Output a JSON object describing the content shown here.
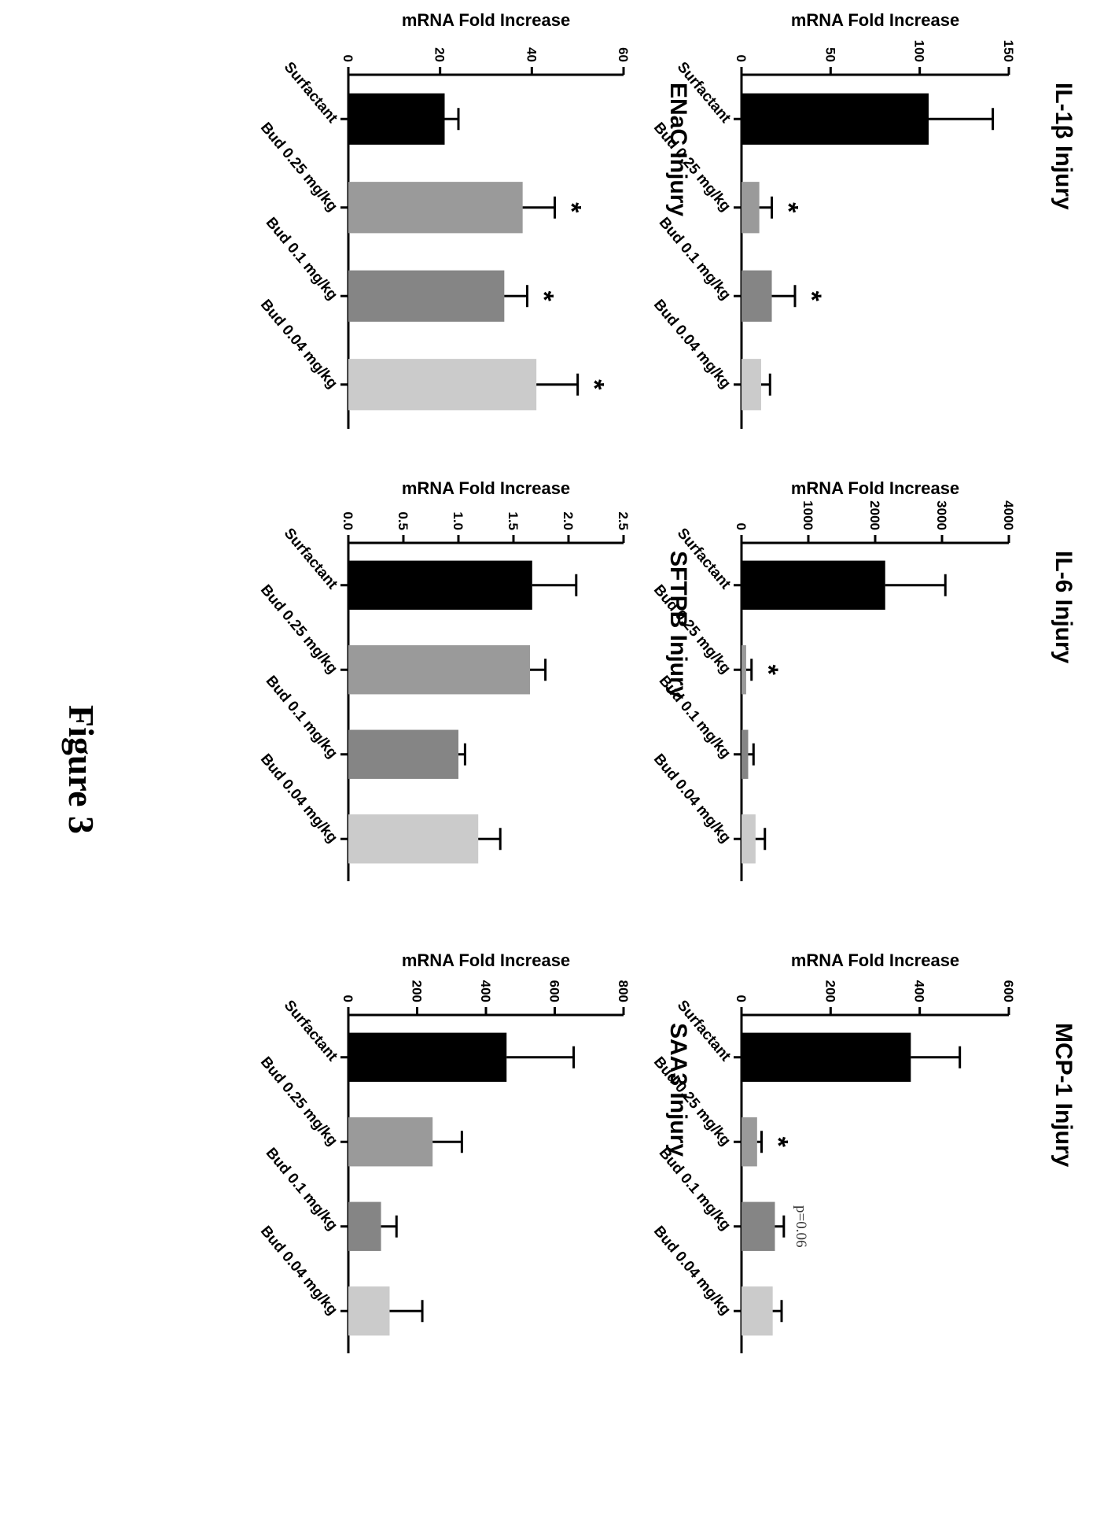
{
  "figure": {
    "caption": "Figure 3",
    "ylabel": "mRNA Fold Increase",
    "bar_colors": [
      "#000000",
      "#9a9a9a",
      "#858585",
      "#cbcbcb"
    ]
  },
  "chart_data": [
    {
      "type": "bar",
      "title": "IL-1β Injury",
      "categories": [
        "Surfactant",
        "Bud 0.25 mg/kg",
        "Bud 0.1 mg/kg",
        "Bud 0.04 mg/kg"
      ],
      "values": [
        105,
        10,
        17,
        11
      ],
      "errors": [
        36,
        7,
        13,
        5
      ],
      "ylim": [
        0,
        150
      ],
      "ticks": [
        0,
        50,
        100,
        150
      ],
      "annotations": [
        "",
        "*",
        "*",
        ""
      ]
    },
    {
      "type": "bar",
      "title": "IL-6 Injury",
      "categories": [
        "Surfactant",
        "Bud 0.25 mg/kg",
        "Bud 0.1 mg/kg",
        "Bud 0.04 mg/kg"
      ],
      "values": [
        2150,
        70,
        100,
        210
      ],
      "errors": [
        900,
        80,
        80,
        140
      ],
      "ylim": [
        0,
        4000
      ],
      "ticks": [
        0,
        1000,
        2000,
        3000,
        4000
      ],
      "annotations": [
        "",
        "*",
        "",
        ""
      ]
    },
    {
      "type": "bar",
      "title": "MCP-1 Injury",
      "categories": [
        "Surfactant",
        "Bud 0.25 mg/kg",
        "Bud 0.1 mg/kg",
        "Bud 0.04 mg/kg"
      ],
      "values": [
        380,
        35,
        75,
        70
      ],
      "errors": [
        110,
        10,
        20,
        20
      ],
      "ylim": [
        0,
        600
      ],
      "ticks": [
        0,
        200,
        400,
        600
      ],
      "annotations": [
        "",
        "*",
        "p=0.06",
        ""
      ]
    },
    {
      "type": "bar",
      "title": "ENaC Injury",
      "categories": [
        "Surfactant",
        "Bud 0.25 mg/kg",
        "Bud 0.1 mg/kg",
        "Bud 0.04 mg/kg"
      ],
      "values": [
        21,
        38,
        34,
        41
      ],
      "errors": [
        3,
        7,
        5,
        9
      ],
      "ylim": [
        0,
        60
      ],
      "ticks": [
        0,
        20,
        40,
        60
      ],
      "annotations": [
        "",
        "*",
        "*",
        "*"
      ]
    },
    {
      "type": "bar",
      "title": "SFTPB Injury",
      "categories": [
        "Surfactant",
        "Bud 0.25 mg/kg",
        "Bud 0.1 mg/kg",
        "Bud 0.04 mg/kg"
      ],
      "values": [
        1.67,
        1.65,
        1.0,
        1.18
      ],
      "errors": [
        0.4,
        0.14,
        0.06,
        0.2
      ],
      "ylim": [
        0,
        2.5
      ],
      "ticks": [
        "0.0",
        "0.5",
        "1.0",
        "1.5",
        "2.0",
        "2.5"
      ],
      "annotations": [
        "",
        "",
        "",
        ""
      ]
    },
    {
      "type": "bar",
      "title": "SAA3 Injury",
      "categories": [
        "Surfactant",
        "Bud 0.25 mg/kg",
        "Bud 0.1 mg/kg",
        "Bud 0.04 mg/kg"
      ],
      "values": [
        460,
        245,
        95,
        120
      ],
      "errors": [
        195,
        85,
        45,
        95
      ],
      "ylim": [
        0,
        800
      ],
      "ticks": [
        0,
        200,
        400,
        600,
        800
      ],
      "annotations": [
        "",
        "",
        "",
        ""
      ]
    }
  ]
}
